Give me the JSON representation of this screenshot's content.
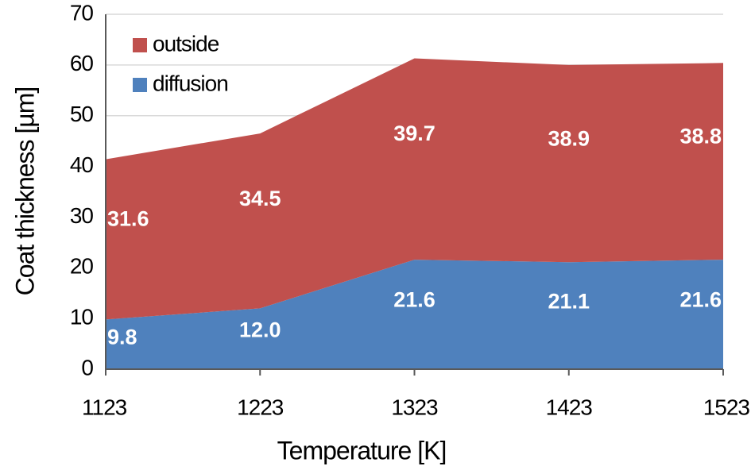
{
  "chart_data": {
    "type": "stacked-area",
    "x": [
      1123,
      1223,
      1323,
      1423,
      1523
    ],
    "xlim": [
      1123,
      1523
    ],
    "xticks": [
      1123,
      1223,
      1323,
      1423,
      1523
    ],
    "ylim": [
      0,
      70
    ],
    "yticks": [
      0,
      10,
      20,
      30,
      40,
      50,
      60,
      70
    ],
    "x_label": "Temperature [K]",
    "y_label": "Coat thickness [µm]",
    "grid": true,
    "legend": "upper-left",
    "series": [
      {
        "name": "diffusion",
        "color": "#4f81bd",
        "values": [
          9.8,
          12,
          21.6,
          21.1,
          21.6
        ],
        "value_labels": [
          "9.8",
          "12.0",
          "21.6",
          "21.1",
          "21.6"
        ]
      },
      {
        "name": "outside",
        "color": "#c0504d",
        "values": [
          31.6,
          34.5,
          39.7,
          38.9,
          38.8
        ],
        "value_labels": [
          "31.6",
          "34.5",
          "39.7",
          "38.9",
          "38.8"
        ]
      }
    ]
  }
}
